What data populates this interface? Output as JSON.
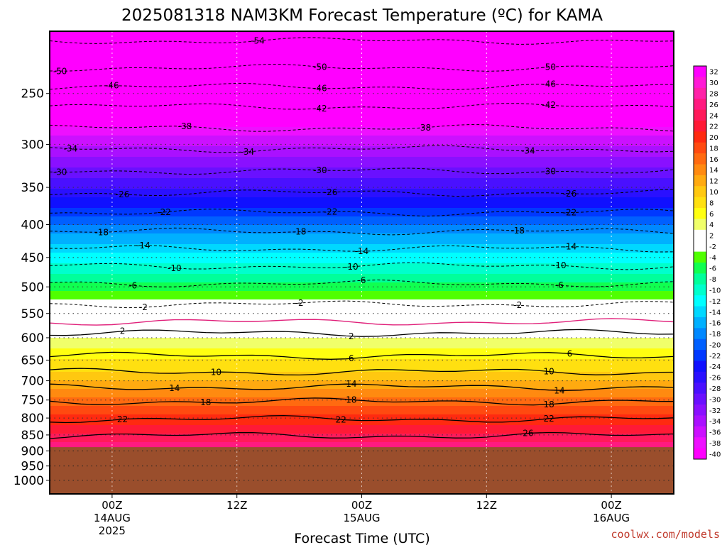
{
  "chart_data": {
    "type": "heatmap",
    "title": "2025081318 NAM3KM Forecast Temperature (ºC) for KAMA",
    "xlabel": "Forecast Time (UTC)",
    "ylabel": "",
    "y_scale": "log-pressure",
    "y_ticks": [
      250,
      300,
      350,
      400,
      450,
      500,
      550,
      600,
      650,
      700,
      750,
      800,
      850,
      900,
      950,
      1000
    ],
    "ylim": [
      1050,
      200
    ],
    "x_ticks": [
      {
        "line1": "00Z",
        "line2": "14AUG",
        "line3": "2025"
      },
      {
        "line1": "12Z",
        "line2": "",
        "line3": ""
      },
      {
        "line1": "00Z",
        "line2": "15AUG",
        "line3": ""
      },
      {
        "line1": "12Z",
        "line2": "",
        "line3": ""
      },
      {
        "line1": "00Z",
        "line2": "16AUG",
        "line3": ""
      }
    ],
    "x_tick_hours": [
      6,
      18,
      30,
      42,
      54
    ],
    "xlim_hours": [
      0,
      60
    ],
    "surface_pressure_hpa": 888,
    "surface_color": "#9a4e2c",
    "colorbar_levels": [
      32,
      30,
      28,
      26,
      24,
      22,
      20,
      18,
      16,
      14,
      12,
      10,
      8,
      6,
      4,
      2,
      -2,
      -4,
      -6,
      -8,
      -10,
      -12,
      -14,
      -16,
      -18,
      -20,
      -22,
      -24,
      -26,
      -28,
      -30,
      -32,
      -34,
      -36,
      -38,
      -40
    ],
    "colorbar_colors": [
      "#ff00ff",
      "#ff1ad6",
      "#ff22a8",
      "#ff1a80",
      "#ff1a5a",
      "#ff1a36",
      "#ff2a10",
      "#ff4a10",
      "#ff6a10",
      "#ff8a10",
      "#ffaa10",
      "#ffc810",
      "#ffe010",
      "#ffff10",
      "#f0ff6a",
      "#ffffff",
      "#ffffff",
      "#50ff00",
      "#10ff50",
      "#00ff9a",
      "#00ffcc",
      "#00ffff",
      "#00d8ff",
      "#00b0ff",
      "#0088ff",
      "#0060ff",
      "#0038ff",
      "#1010ff",
      "#2a10ff",
      "#4a10ff",
      "#6a10ff",
      "#8a10ff",
      "#aa10ff",
      "#cc10ff",
      "#ee10ff",
      "#ff00ff"
    ],
    "temperature_profile": [
      {
        "p": 200,
        "t": -56
      },
      {
        "p": 220,
        "t": -52
      },
      {
        "p": 235,
        "t": -48
      },
      {
        "p": 255,
        "t": -44
      },
      {
        "p": 275,
        "t": -40
      },
      {
        "p": 295,
        "t": -35
      },
      {
        "p": 320,
        "t": -31
      },
      {
        "p": 345,
        "t": -27
      },
      {
        "p": 370,
        "t": -23
      },
      {
        "p": 395,
        "t": -19
      },
      {
        "p": 420,
        "t": -15
      },
      {
        "p": 450,
        "t": -11
      },
      {
        "p": 485,
        "t": -7
      },
      {
        "p": 515,
        "t": -3
      },
      {
        "p": 540,
        "t": 0
      },
      {
        "p": 565,
        "t": 1
      },
      {
        "p": 600,
        "t": 4
      },
      {
        "p": 650,
        "t": 8
      },
      {
        "p": 690,
        "t": 11
      },
      {
        "p": 730,
        "t": 15
      },
      {
        "p": 775,
        "t": 19
      },
      {
        "p": 820,
        "t": 22
      },
      {
        "p": 860,
        "t": 25
      },
      {
        "p": 890,
        "t": 28
      }
    ],
    "contours": [
      {
        "level": -54,
        "p": 207,
        "style": "dashed",
        "labels": [
          20
        ]
      },
      {
        "level": -50,
        "p": 228,
        "style": "dashed",
        "labels": [
          1,
          26,
          48
        ]
      },
      {
        "level": -46,
        "p": 244,
        "style": "dashed",
        "labels": [
          6,
          26,
          48
        ]
      },
      {
        "level": -42,
        "p": 262,
        "style": "dashed",
        "labels": [
          26,
          48
        ]
      },
      {
        "level": -38,
        "p": 283,
        "style": "dashed",
        "labels": [
          13,
          36
        ]
      },
      {
        "level": -34,
        "p": 305,
        "style": "dashed",
        "labels": [
          2,
          19,
          46
        ]
      },
      {
        "level": -30,
        "p": 330,
        "style": "dashed",
        "labels": [
          1,
          26,
          48
        ]
      },
      {
        "level": -26,
        "p": 357,
        "style": "dashed",
        "labels": [
          7,
          27,
          50
        ]
      },
      {
        "level": -22,
        "p": 383,
        "style": "dashed",
        "labels": [
          11,
          27,
          50
        ]
      },
      {
        "level": -18,
        "p": 410,
        "style": "dashed",
        "labels": [
          5,
          24,
          45
        ]
      },
      {
        "level": -14,
        "p": 436,
        "style": "dashed",
        "labels": [
          9,
          30,
          50
        ]
      },
      {
        "level": -10,
        "p": 464,
        "style": "dashed",
        "labels": [
          12,
          29,
          49
        ]
      },
      {
        "level": -6,
        "p": 494,
        "style": "dashed",
        "labels": [
          8,
          30,
          49
        ]
      },
      {
        "level": -2,
        "p": 532,
        "style": "dashed",
        "labels": [
          9,
          24,
          45
        ]
      },
      {
        "level": 0,
        "p": 567,
        "style": "magenta",
        "labels": []
      },
      {
        "level": 2,
        "p": 590,
        "style": "solid",
        "labels": [
          7,
          29
        ]
      },
      {
        "level": 6,
        "p": 640,
        "style": "solid",
        "labels": [
          29,
          50
        ]
      },
      {
        "level": 10,
        "p": 678,
        "style": "solid",
        "labels": [
          16,
          48
        ]
      },
      {
        "level": 14,
        "p": 716,
        "style": "solid",
        "labels": [
          12,
          29,
          49
        ]
      },
      {
        "level": 18,
        "p": 754,
        "style": "solid",
        "labels": [
          15,
          29,
          48
        ]
      },
      {
        "level": 22,
        "p": 803,
        "style": "solid",
        "labels": [
          7,
          28,
          48
        ]
      },
      {
        "level": 26,
        "p": 852,
        "style": "solid",
        "labels": [
          46
        ]
      }
    ]
  },
  "credit": "coolwx.com/models"
}
